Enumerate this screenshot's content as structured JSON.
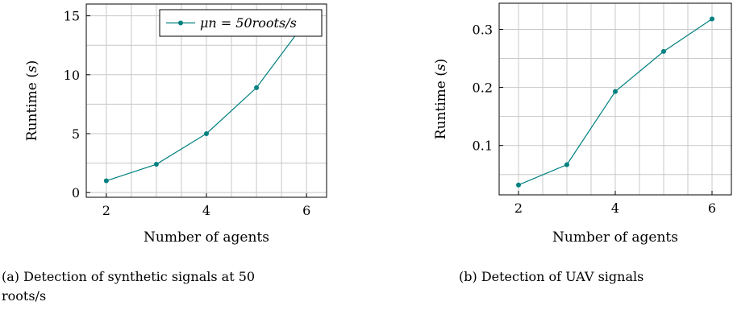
{
  "chart_data": [
    {
      "type": "line",
      "x": [
        2,
        3,
        4,
        5,
        6
      ],
      "series": [
        {
          "name": "μn = 50roots/s",
          "values": [
            1.0,
            2.4,
            5.0,
            8.9,
            14.6
          ]
        }
      ],
      "xlabel": "Number of agents",
      "ylabel": "Runtime (s)",
      "xlim": [
        1.6,
        6.4
      ],
      "ylim": [
        -0.4,
        16.0
      ],
      "xticks": [
        2,
        4,
        6
      ],
      "yticks": [
        0,
        5,
        10,
        15
      ],
      "grid": true,
      "legend": "top-right",
      "color": "#008080"
    },
    {
      "type": "line",
      "x": [
        2,
        3,
        4,
        5,
        6
      ],
      "series": [
        {
          "name": "",
          "values": [
            0.032,
            0.067,
            0.193,
            0.262,
            0.318
          ]
        }
      ],
      "xlabel": "Number of agents",
      "ylabel": "Runtime (s)",
      "xlim": [
        1.6,
        6.4
      ],
      "ylim": [
        0.015,
        0.345
      ],
      "xticks": [
        2,
        4,
        6
      ],
      "yticks": [
        0.1,
        0.2,
        0.3
      ],
      "grid": true,
      "legend": "none",
      "color": "#008080"
    }
  ],
  "captions": {
    "a_line1": "(a) Detection of synthetic signals at 50",
    "a_line2": "roots/s",
    "b": "(b) Detection of UAV signals"
  }
}
